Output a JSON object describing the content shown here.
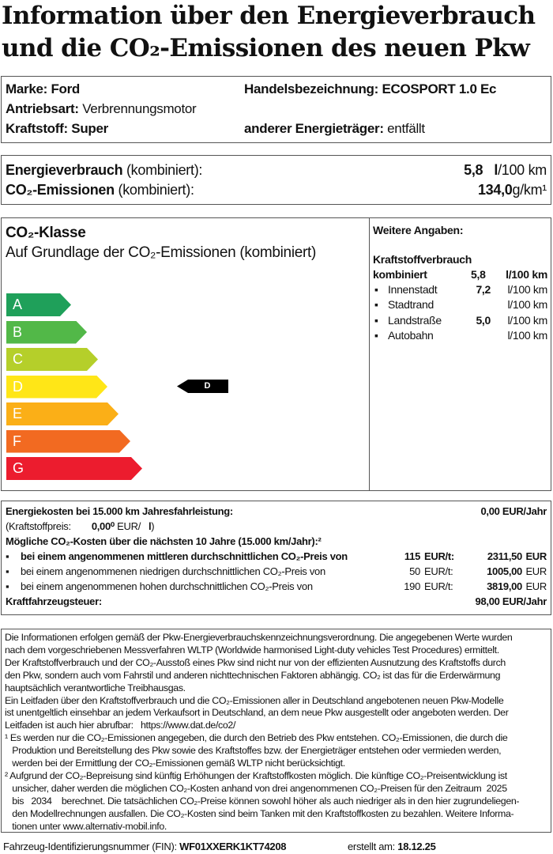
{
  "title": {
    "line1": "Information über den Energieverbrauch",
    "line2": "und die CO₂-Emissionen des neuen Pkw"
  },
  "vehicle": {
    "marke_label": "Marke:",
    "marke": "Ford",
    "handels_label": "Handelsbezeichnung:",
    "handels": "ECOSPORT 1.0 Ec",
    "antrieb_label": "Antriebsart:",
    "antrieb": "Verbrennungsmotor",
    "kraftstoff_label": "Kraftstoff:",
    "kraftstoff": "Super",
    "anderer_label": "anderer Energieträger:",
    "anderer": "entfällt"
  },
  "consumption": {
    "energy_label": "Energieverbrauch",
    "energy_suffix": "(kombiniert):",
    "energy_value": "5,8",
    "energy_unit_l": "l",
    "energy_unit": "/100 km",
    "co2_label": "CO₂-Emissionen",
    "co2_suffix": "(kombiniert):",
    "co2_value": "134,0",
    "co2_unit": "g/km¹"
  },
  "co2class": {
    "title": "CO₂-Klasse",
    "subtitle": "Auf Grundlage der CO₂-Emissionen (kombiniert)",
    "classes": [
      "A",
      "B",
      "C",
      "D",
      "E",
      "F",
      "G"
    ],
    "colors": [
      "#1fa05a",
      "#52b848",
      "#b5cf2a",
      "#ffe617",
      "#fbaf17",
      "#f26a21",
      "#ec1c2e"
    ],
    "current": "D"
  },
  "weitere": {
    "title": "Weitere Angaben:",
    "heading": "Kraftstoffverbrauch",
    "kombiniert_label": "kombiniert",
    "kombiniert_value": "5,8",
    "kombiniert_unit": "l/100 km",
    "items": [
      {
        "label": "Innenstadt",
        "value": "7,2",
        "unit": "l/100 km"
      },
      {
        "label": "Stadtrand",
        "value": "",
        "unit": "l/100 km"
      },
      {
        "label": "Landstraße",
        "value": "5,0",
        "unit": "l/100 km"
      },
      {
        "label": "Autobahn",
        "value": "",
        "unit": "l/100 km"
      }
    ]
  },
  "costs": {
    "energy_label": "Energiekosten bei 15.000 km Jahresfahrleistung:",
    "energy_value": "0,00 EUR/Jahr",
    "price_label": "(Kraftstoffpreis:",
    "price_value": "0,00⁰",
    "price_unit": "EUR/",
    "price_l": "l",
    "price_close": ")",
    "co2_heading": "Mögliche CO₂-Kosten über die nächsten 10 Jahre (15.000 km/Jahr):²",
    "scenarios": [
      {
        "text": "bei einem angenommenen mittleren durchschnittlichen CO₂-Preis von",
        "price": "115",
        "unit": "EUR/t:",
        "value": "2311,50",
        "cur": "EUR"
      },
      {
        "text": "bei einem angenommenen niedrigen durchschnittlichen CO₂-Preis von",
        "price": "50",
        "unit": "EUR/t:",
        "value": "1005,00",
        "cur": "EUR"
      },
      {
        "text": "bei einem angenommenen hohen durchschnittlichen CO₂-Preis von",
        "price": "190",
        "unit": "EUR/t:",
        "value": "3819,00",
        "cur": "EUR"
      }
    ],
    "tax_label": "Kraftfahrzeugsteuer:",
    "tax_value": "98,00 EUR/Jahr"
  },
  "notes": [
    "Die Informationen erfolgen gemäß der Pkw-Energieverbrauchskennzeichnungsverordnung. Die angegebenen Werte wurden",
    "nach dem vorgeschriebenen Messverfahren WLTP (Worldwide harmonised Light-duty vehicles Test Procedures) ermittelt.",
    "Der Kraftstoffverbrauch und der CO₂-Ausstoß eines Pkw sind nicht nur von der effizienten Ausnutzung des Kraftstoffs durch",
    "den Pkw, sondern auch vom Fahrstil und anderen nichttechnischen Faktoren abhängig. CO₂ ist das für die Erderwärmung",
    "hauptsächlich verantwortliche Treibhausgas.",
    "Ein Leitfaden über den Kraftstoffverbrauch und die CO₂-Emissionen aller in Deutschland angebotenen neuen Pkw-Modelle",
    "ist unentgeltlich einsehbar an jedem Verkaufsort in Deutschland, an dem neue Pkw ausgestellt oder angeboten werden. Der",
    "Leitfaden ist auch hier abrufbar:   https://www.dat.de/co2/",
    "¹ Es werden nur die CO₂-Emissionen angegeben, die durch den Betrieb des Pkw entstehen. CO₂-Emissionen, die durch die",
    "   Produktion und Bereitstellung des Pkw sowie des Kraftstoffes bzw. der Energieträger entstehen oder vermieden werden,",
    "   werden bei der Ermittlung der CO₂-Emissionen gemäß WLTP nicht berücksichtigt.",
    "² Aufgrund der CO₂-Bepreisung sind künftig Erhöhungen der Kraftstoffkosten möglich. Die künftige CO₂-Preisentwicklung ist",
    "   unsicher, daher werden die möglichen CO₂-Kosten anhand von drei angenommenen CO₂-Preisen für den Zeitraum  2025",
    "   bis   2034    berechnet. Die tatsächlichen CO₂-Preise können sowohl höher als auch niedriger als in den hier zugrundeliegen-",
    "   den Modellrechnungen ausfallen. Die CO₂-Kosten sind beim Tanken mit den Kraftstoffkosten zu bezahlen. Weitere Informa-",
    "   tionen unter www.alternativ-mobil.info."
  ],
  "footer": {
    "fin_label": "Fahrzeug-Identifizierungsnummer (FIN):",
    "fin": "WF01XXERK1KT74208",
    "date_label": "erstellt am:",
    "date": "18.12.25"
  }
}
